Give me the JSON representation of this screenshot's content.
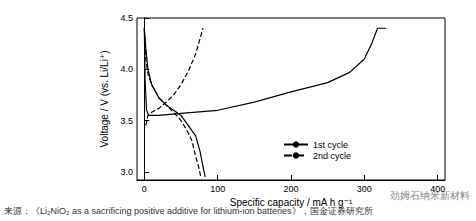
{
  "chart_data": {
    "type": "line",
    "x_label": "Specific capacity / mA h g⁻¹",
    "y_label": "Voltage / V (vs. Li/Li⁺)",
    "xlim": [
      -10,
      410
    ],
    "xticks": [
      0,
      100,
      200,
      300,
      400
    ],
    "ylim": [
      2.92,
      4.5
    ],
    "yticks": [
      {
        "value": 3,
        "label": "3.0"
      },
      {
        "value": 3.5,
        "label": "3.5"
      },
      {
        "value": 4,
        "label": "4.0"
      },
      {
        "value": 4.5,
        "label": "4.5"
      }
    ],
    "grid": false,
    "legend": "lower right",
    "annotations": [
      "来源：《Li₂NiO₂ as a sacrificing positive additive for lithium-ion batteries》，国金证券研究所",
      "劲姆石纳米新材料"
    ],
    "series": [
      {
        "name": "1st cycle",
        "color": "#000000",
        "line_style": "solid",
        "charge": {
          "x": [
            0,
            1,
            3,
            6,
            20,
            50,
            100,
            150,
            200,
            250,
            280,
            300,
            310,
            318,
            322,
            330
          ],
          "values": [
            4.4,
            3.9,
            3.6,
            3.55,
            3.55,
            3.57,
            3.6,
            3.68,
            3.78,
            3.87,
            3.97,
            4.1,
            4.25,
            4.4,
            4.4,
            4.4
          ]
        },
        "discharge": {
          "x": [
            0,
            2,
            5,
            10,
            20,
            30,
            40,
            50,
            60,
            70,
            76,
            80,
            83
          ],
          "values": [
            4.4,
            4.2,
            4.0,
            3.85,
            3.72,
            3.65,
            3.6,
            3.55,
            3.45,
            3.35,
            3.2,
            3.05,
            2.95
          ]
        }
      },
      {
        "name": "2nd cycle",
        "color": "#000000",
        "line_style": "dashed",
        "charge": {
          "x": [
            2,
            5,
            10,
            20,
            30,
            40,
            50,
            60,
            70,
            76,
            80
          ],
          "values": [
            3.45,
            3.55,
            3.58,
            3.62,
            3.68,
            3.75,
            3.85,
            3.98,
            4.15,
            4.3,
            4.4
          ]
        },
        "discharge": {
          "x": [
            0,
            2,
            5,
            10,
            20,
            30,
            40,
            50,
            60,
            65,
            70,
            74,
            77
          ],
          "values": [
            4.4,
            4.1,
            3.95,
            3.85,
            3.72,
            3.65,
            3.58,
            3.5,
            3.38,
            3.3,
            3.15,
            3.05,
            2.95
          ]
        }
      }
    ]
  }
}
